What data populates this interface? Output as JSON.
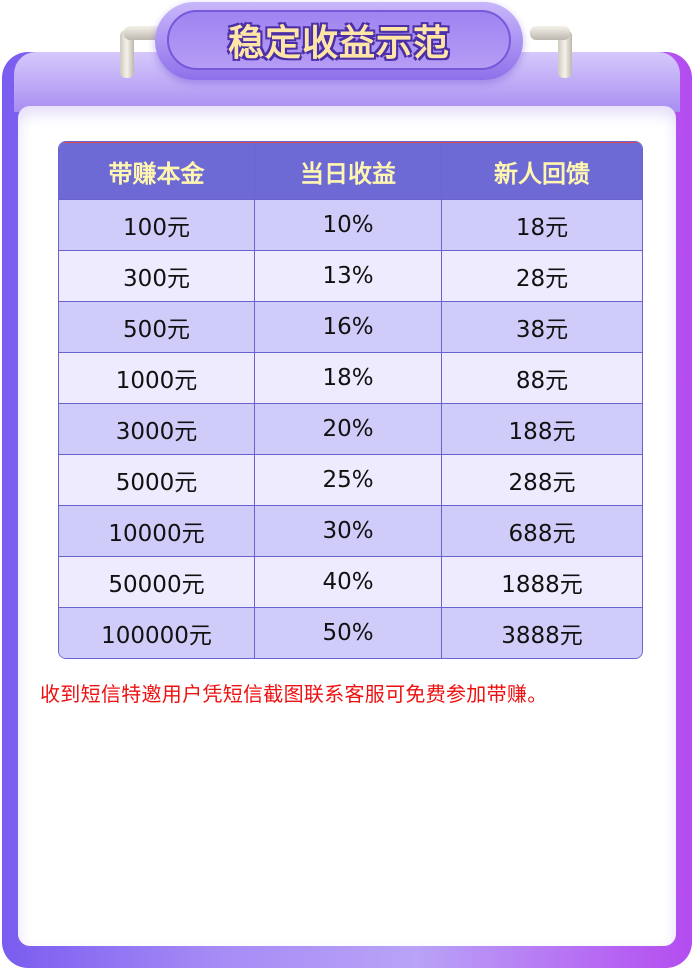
{
  "title": "稳定收益示范",
  "table": {
    "headers": [
      "带赚本金",
      "当日收益",
      "新人回馈"
    ],
    "rows": [
      [
        "100元",
        "10%",
        "18元"
      ],
      [
        "300元",
        "13%",
        "28元"
      ],
      [
        "500元",
        "16%",
        "38元"
      ],
      [
        "1000元",
        "18%",
        "88元"
      ],
      [
        "3000元",
        "20%",
        "188元"
      ],
      [
        "5000元",
        "25%",
        "288元"
      ],
      [
        "10000元",
        "30%",
        "688元"
      ],
      [
        "50000元",
        "40%",
        "1888元"
      ],
      [
        "100000元",
        "50%",
        "3888元"
      ]
    ]
  },
  "note": "收到短信特邀用户凭短信截图联系客服可免费参加带赚。",
  "colors": {
    "header_bg": "#6d6ad6",
    "header_text": "#fff6b0",
    "note": "#ee1111",
    "frame": "#7a5cf0"
  }
}
